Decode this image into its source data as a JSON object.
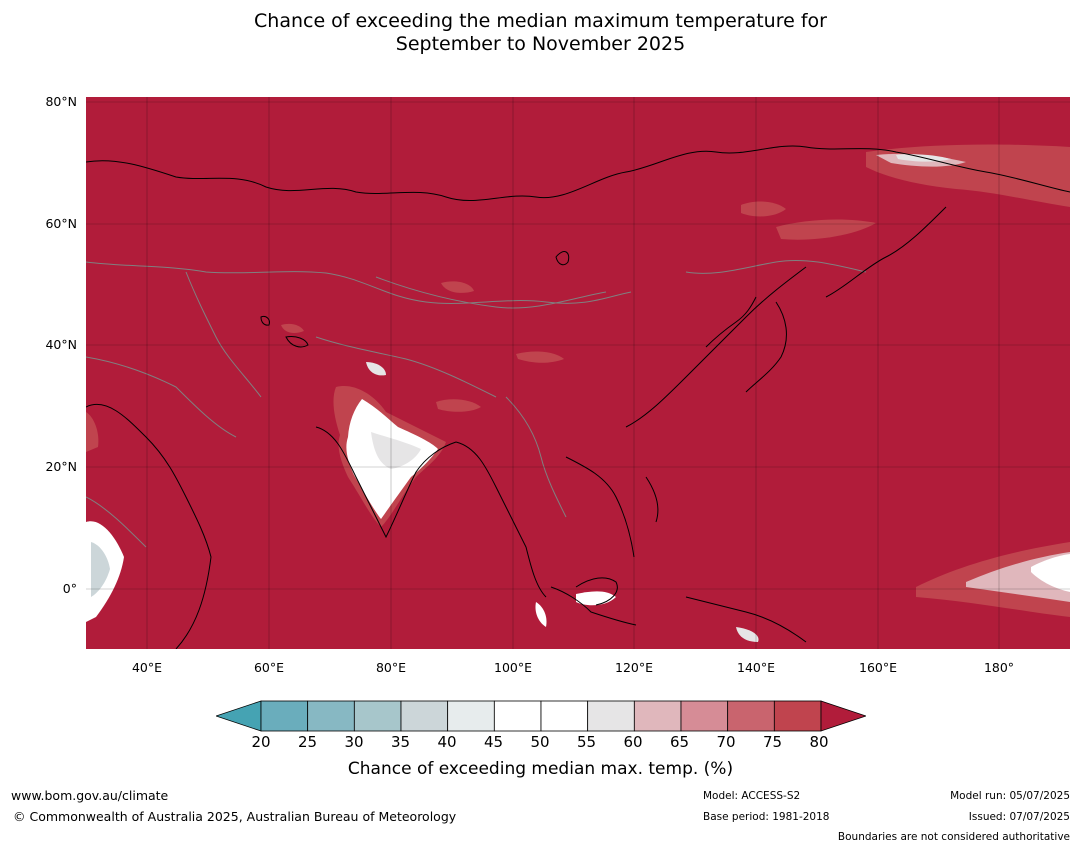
{
  "title_line1": "Chance of exceeding the median maximum temperature for",
  "title_line2": "September to November 2025",
  "lat_labels": [
    "80°N",
    "60°N",
    "40°N",
    "20°N",
    "0°"
  ],
  "lon_labels": [
    "40°E",
    "60°E",
    "80°E",
    "100°E",
    "120°E",
    "140°E",
    "160°E",
    "180°"
  ],
  "map_extent": {
    "lon": [
      30,
      191
    ],
    "lat": [
      -10,
      81
    ]
  },
  "colors": {
    "land_ocean_dominant": "#b11c3a",
    "coastline": "#000000",
    "boundary": "#808080",
    "gridline": "#000000"
  },
  "colorbar": {
    "ticks": [
      "20",
      "25",
      "30",
      "35",
      "40",
      "45",
      "50",
      "55",
      "60",
      "65",
      "70",
      "75",
      "80"
    ],
    "colors": [
      "#45a3b3",
      "#6aadbc",
      "#87b8c3",
      "#a7c6cb",
      "#ccd6d9",
      "#e7eced",
      "#ffffff",
      "#ffffff",
      "#e6e5e6",
      "#e0b7bc",
      "#d68c96",
      "#c9646e",
      "#c0444e",
      "#b11c3a"
    ],
    "label": "Chance of exceeding median max. temp. (%)"
  },
  "footer": {
    "website": "www.bom.gov.au/climate",
    "copyright": "© Commonwealth of Australia 2025, Australian Bureau of Meteorology",
    "model": "Model: ACCESS-S2",
    "base_period": "Base period: 1981-2018",
    "model_run": "Model run: 05/07/2025",
    "issued": "Issued: 07/07/2025",
    "disclaimer": "Boundaries are not considered authoritative"
  }
}
